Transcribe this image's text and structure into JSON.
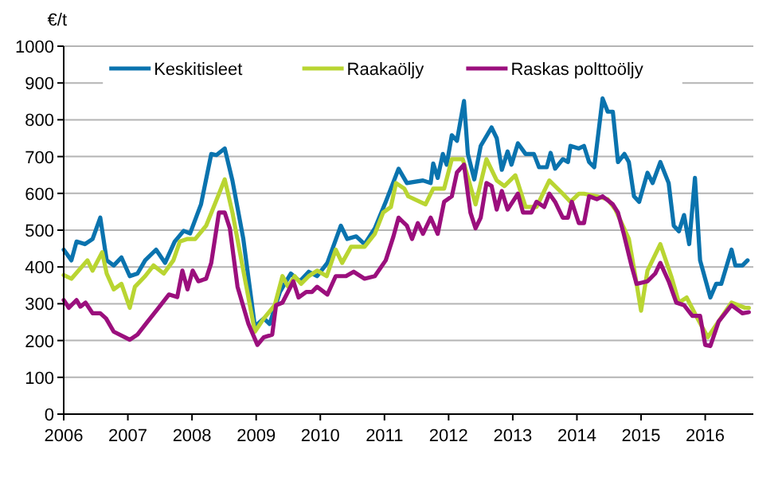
{
  "chart_data": {
    "type": "line",
    "ylabel": "€/t",
    "xlim": [
      2006,
      2016.75
    ],
    "xticks": [
      2006,
      2007,
      2008,
      2009,
      2010,
      2011,
      2012,
      2013,
      2014,
      2015,
      2016
    ],
    "ylim": [
      0,
      1000
    ],
    "yticks": [
      0,
      100,
      200,
      300,
      400,
      500,
      600,
      700,
      800,
      900,
      1000
    ],
    "grid": "y",
    "legend": "top",
    "line_style": "solid",
    "series": [
      {
        "name": "Keskitisleet",
        "color": "#0a73ae",
        "x": [
          2006.0,
          2006.12,
          2006.2,
          2006.33,
          2006.45,
          2006.57,
          2006.67,
          2006.78,
          2006.9,
          2007.03,
          2007.15,
          2007.27,
          2007.44,
          2007.58,
          2007.73,
          2007.87,
          2007.97,
          2008.14,
          2008.3,
          2008.38,
          2008.51,
          2008.63,
          2008.8,
          2008.98,
          2009.12,
          2009.21,
          2009.37,
          2009.54,
          2009.68,
          2009.82,
          2009.95,
          2010.11,
          2010.32,
          2010.42,
          2010.56,
          2010.69,
          2010.85,
          2011.02,
          2011.22,
          2011.35,
          2011.6,
          2011.72,
          2011.76,
          2011.83,
          2011.91,
          2011.97,
          2012.05,
          2012.13,
          2012.24,
          2012.3,
          2012.4,
          2012.5,
          2012.67,
          2012.75,
          2012.83,
          2012.92,
          2012.98,
          2013.08,
          2013.2,
          2013.33,
          2013.41,
          2013.53,
          2013.59,
          2013.66,
          2013.78,
          2013.86,
          2013.9,
          2014.03,
          2014.11,
          2014.19,
          2014.27,
          2014.4,
          2014.48,
          2014.56,
          2014.64,
          2014.74,
          2014.81,
          2014.89,
          2014.97,
          2015.1,
          2015.18,
          2015.3,
          2015.43,
          2015.51,
          2015.59,
          2015.67,
          2015.75,
          2015.84,
          2015.92,
          2016.08,
          2016.17,
          2016.25,
          2016.41,
          2016.47,
          2016.58,
          2016.66
        ],
        "values": [
          447,
          418,
          469,
          462,
          476,
          534,
          418,
          404,
          426,
          375,
          382,
          418,
          447,
          411,
          469,
          498,
          491,
          570,
          707,
          704,
          722,
          635,
          476,
          238,
          260,
          245,
          332,
          382,
          361,
          387,
          375,
          411,
          512,
          476,
          483,
          462,
          505,
          577,
          667,
          628,
          635,
          628,
          681,
          642,
          707,
          678,
          758,
          743,
          851,
          707,
          638,
          729,
          779,
          750,
          664,
          714,
          678,
          736,
          707,
          707,
          671,
          671,
          710,
          667,
          693,
          685,
          729,
          722,
          729,
          685,
          671,
          858,
          822,
          822,
          685,
          707,
          685,
          592,
          577,
          656,
          628,
          685,
          628,
          512,
          497,
          541,
          462,
          642,
          418,
          317,
          354,
          354,
          447,
          404,
          404,
          418
        ]
      },
      {
        "name": "Raakaöljy",
        "color": "#b9d532",
        "x": [
          2006.0,
          2006.12,
          2006.37,
          2006.45,
          2006.6,
          2006.67,
          2006.78,
          2006.9,
          2007.03,
          2007.11,
          2007.27,
          2007.4,
          2007.56,
          2007.71,
          2007.81,
          2007.93,
          2008.05,
          2008.22,
          2008.37,
          2008.51,
          2008.63,
          2008.8,
          2008.98,
          2009.12,
          2009.29,
          2009.41,
          2009.5,
          2009.6,
          2009.7,
          2009.82,
          2009.95,
          2010.1,
          2010.24,
          2010.34,
          2010.48,
          2010.69,
          2010.85,
          2010.98,
          2011.1,
          2011.18,
          2011.31,
          2011.37,
          2011.64,
          2011.76,
          2011.93,
          2012.05,
          2012.22,
          2012.42,
          2012.59,
          2012.75,
          2012.87,
          2013.04,
          2013.08,
          2013.2,
          2013.37,
          2013.57,
          2013.78,
          2013.9,
          2014.03,
          2014.11,
          2014.31,
          2014.48,
          2014.6,
          2014.81,
          2014.91,
          2015.0,
          2015.1,
          2015.3,
          2015.47,
          2015.59,
          2015.71,
          2015.88,
          2016.04,
          2016.21,
          2016.41,
          2016.62,
          2016.68
        ],
        "values": [
          378,
          368,
          418,
          390,
          440,
          382,
          339,
          354,
          289,
          346,
          375,
          404,
          382,
          418,
          469,
          476,
          476,
          512,
          577,
          638,
          548,
          390,
          224,
          260,
          296,
          375,
          346,
          375,
          354,
          375,
          390,
          375,
          447,
          411,
          455,
          455,
          490,
          548,
          563,
          628,
          613,
          592,
          570,
          613,
          613,
          693,
          693,
          570,
          693,
          635,
          620,
          649,
          628,
          563,
          563,
          635,
          599,
          577,
          599,
          599,
          592,
          584,
          556,
          476,
          375,
          281,
          390,
          462,
          375,
          303,
          317,
          260,
          209,
          252,
          303,
          289,
          289
        ]
      },
      {
        "name": "Raskas polttoöljy",
        "color": "#9b0f7d",
        "x": [
          2006.0,
          2006.08,
          2006.2,
          2006.26,
          2006.34,
          2006.45,
          2006.57,
          2006.66,
          2006.78,
          2007.03,
          2007.15,
          2007.31,
          2007.48,
          2007.64,
          2007.77,
          2007.85,
          2007.93,
          2008.01,
          2008.1,
          2008.22,
          2008.3,
          2008.42,
          2008.51,
          2008.59,
          2008.71,
          2008.88,
          2009.02,
          2009.12,
          2009.25,
          2009.31,
          2009.41,
          2009.58,
          2009.66,
          2009.78,
          2009.87,
          2009.95,
          2010.11,
          2010.24,
          2010.4,
          2010.52,
          2010.69,
          2010.85,
          2011.02,
          2011.14,
          2011.22,
          2011.35,
          2011.43,
          2011.52,
          2011.6,
          2011.72,
          2011.83,
          2011.93,
          2012.05,
          2012.13,
          2012.24,
          2012.34,
          2012.42,
          2012.5,
          2012.59,
          2012.67,
          2012.75,
          2012.83,
          2012.92,
          2013.08,
          2013.16,
          2013.29,
          2013.37,
          2013.49,
          2013.57,
          2013.66,
          2013.78,
          2013.86,
          2013.92,
          2014.03,
          2014.11,
          2014.19,
          2014.31,
          2014.4,
          2014.56,
          2014.64,
          2014.73,
          2014.85,
          2014.93,
          2015.1,
          2015.22,
          2015.3,
          2015.43,
          2015.55,
          2015.67,
          2015.8,
          2015.92,
          2016.0,
          2016.08,
          2016.21,
          2016.41,
          2016.58,
          2016.68
        ],
        "values": [
          310,
          289,
          310,
          292,
          303,
          274,
          274,
          260,
          224,
          202,
          216,
          252,
          289,
          325,
          318,
          390,
          339,
          390,
          361,
          368,
          411,
          548,
          548,
          505,
          346,
          245,
          188,
          209,
          216,
          296,
          303,
          361,
          317,
          332,
          332,
          346,
          325,
          375,
          375,
          387,
          368,
          375,
          418,
          483,
          534,
          512,
          476,
          519,
          490,
          534,
          490,
          577,
          592,
          657,
          678,
          548,
          505,
          534,
          628,
          620,
          556,
          606,
          556,
          599,
          548,
          548,
          577,
          563,
          599,
          577,
          534,
          534,
          577,
          519,
          519,
          592,
          584,
          592,
          570,
          548,
          490,
          404,
          354,
          361,
          382,
          411,
          361,
          303,
          296,
          267,
          267,
          188,
          185,
          252,
          296,
          274,
          277
        ]
      }
    ]
  }
}
